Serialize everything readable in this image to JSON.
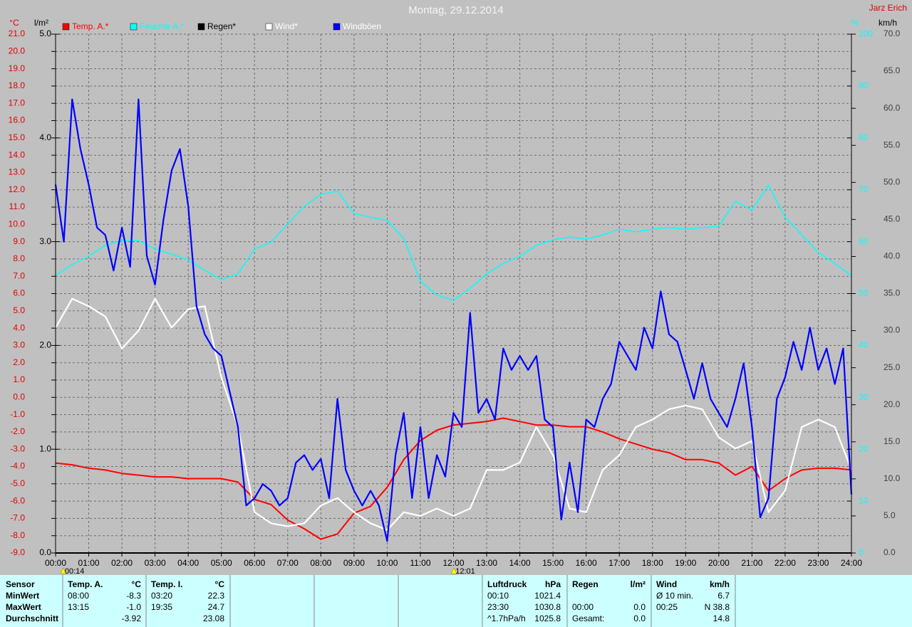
{
  "chart_data": {
    "type": "line",
    "title": "Montag, 29.12.2014",
    "author": "Jarz Erich",
    "y_label": "°C",
    "y2_label": "l/m²",
    "y3_label": "%",
    "y4_label": "km/h",
    "xlim": [
      0,
      24
    ],
    "xticks": [
      {
        "value": 0,
        "label": "00:00"
      },
      {
        "value": 1,
        "label": "01:00"
      },
      {
        "value": 2,
        "label": "02:00"
      },
      {
        "value": 3,
        "label": "03:00"
      },
      {
        "value": 4,
        "label": "04:00"
      },
      {
        "value": 5,
        "label": "05:00"
      },
      {
        "value": 6,
        "label": "06:00"
      },
      {
        "value": 7,
        "label": "07:00"
      },
      {
        "value": 8,
        "label": "08:00"
      },
      {
        "value": 9,
        "label": "09:00"
      },
      {
        "value": 10,
        "label": "10:00"
      },
      {
        "value": 11,
        "label": "11:00"
      },
      {
        "value": 12,
        "label": "12:00"
      },
      {
        "value": 13,
        "label": "13:00"
      },
      {
        "value": 14,
        "label": "14:00"
      },
      {
        "value": 15,
        "label": "15:00"
      },
      {
        "value": 16,
        "label": "16:00"
      },
      {
        "value": 17,
        "label": "17:00"
      },
      {
        "value": 18,
        "label": "18:00"
      },
      {
        "value": 19,
        "label": "19:00"
      },
      {
        "value": 20,
        "label": "20:00"
      },
      {
        "value": 21,
        "label": "21:00"
      },
      {
        "value": 22,
        "label": "22:00"
      },
      {
        "value": 23,
        "label": "23:00"
      },
      {
        "value": 24,
        "label": "24:00"
      }
    ],
    "ylim": [
      -9,
      21
    ],
    "yticks": [
      {
        "value": -9,
        "label": "-9.0"
      },
      {
        "value": -8,
        "label": "-8.0"
      },
      {
        "value": -7,
        "label": "-7.0"
      },
      {
        "value": -6,
        "label": "-6.0"
      },
      {
        "value": -5,
        "label": "-5.0"
      },
      {
        "value": -4,
        "label": "-4.0"
      },
      {
        "value": -3,
        "label": "-3.0"
      },
      {
        "value": -2,
        "label": "-2.0"
      },
      {
        "value": -1,
        "label": "-1.0"
      },
      {
        "value": 0,
        "label": "0.0"
      },
      {
        "value": 1,
        "label": "1.0"
      },
      {
        "value": 2,
        "label": "2.0"
      },
      {
        "value": 3,
        "label": "3.0"
      },
      {
        "value": 4,
        "label": "4.0"
      },
      {
        "value": 5,
        "label": "5.0"
      },
      {
        "value": 6,
        "label": "6.0"
      },
      {
        "value": 7,
        "label": "7.0"
      },
      {
        "value": 8,
        "label": "8.0"
      },
      {
        "value": 9,
        "label": "9.0"
      },
      {
        "value": 10,
        "label": "10.0"
      },
      {
        "value": 11,
        "label": "11.0"
      },
      {
        "value": 12,
        "label": "12.0"
      },
      {
        "value": 13,
        "label": "13.0"
      },
      {
        "value": 14,
        "label": "14.0"
      },
      {
        "value": 15,
        "label": "15.0"
      },
      {
        "value": 16,
        "label": "16.0"
      },
      {
        "value": 17,
        "label": "17.0"
      },
      {
        "value": 18,
        "label": "18.0"
      },
      {
        "value": 19,
        "label": "19.0"
      },
      {
        "value": 20,
        "label": "20.0"
      },
      {
        "value": 21,
        "label": "21.0"
      }
    ],
    "y2lim": [
      0,
      5
    ],
    "y2ticks": [
      {
        "value": 0,
        "label": "0.0"
      },
      {
        "value": 1,
        "label": "1.0"
      },
      {
        "value": 2,
        "label": "2.0"
      },
      {
        "value": 3,
        "label": "3.0"
      },
      {
        "value": 4,
        "label": "4.0"
      },
      {
        "value": 5,
        "label": "5.0"
      }
    ],
    "y3lim": [
      0,
      100
    ],
    "y3ticks": [
      0,
      10,
      20,
      30,
      40,
      50,
      60,
      70,
      80,
      90,
      100
    ],
    "y4lim": [
      0,
      70
    ],
    "y4ticks": [
      {
        "value": 0,
        "label": "0.0"
      },
      {
        "value": 5,
        "label": "5.0"
      },
      {
        "value": 10,
        "label": "10.0"
      },
      {
        "value": 15,
        "label": "15.0"
      },
      {
        "value": 20,
        "label": "20.0"
      },
      {
        "value": 25,
        "label": "25.0"
      },
      {
        "value": 30,
        "label": "30.0"
      },
      {
        "value": 35,
        "label": "35.0"
      },
      {
        "value": 40,
        "label": "40.0"
      },
      {
        "value": 45,
        "label": "45.0"
      },
      {
        "value": 50,
        "label": "50.0"
      },
      {
        "value": 55,
        "label": "55.0"
      },
      {
        "value": 60,
        "label": "60.0"
      },
      {
        "value": 65,
        "label": "65.0"
      },
      {
        "value": 70,
        "label": "70.0"
      }
    ],
    "grid": true,
    "markers": [
      "00:14",
      "12:01"
    ],
    "series": [
      {
        "name": "Temp. A.*",
        "color": "#ff0000",
        "label_color": "#ff0000",
        "axis": "y",
        "x": [
          0,
          0.5,
          1,
          1.5,
          2,
          2.5,
          3,
          3.5,
          4,
          4.5,
          5,
          5.5,
          6,
          6.5,
          7,
          7.5,
          8,
          8.5,
          9,
          9.5,
          10,
          10.5,
          11,
          11.5,
          12,
          12.5,
          13,
          13.5,
          14,
          14.5,
          15,
          15.5,
          16,
          16.5,
          17,
          17.5,
          18,
          18.5,
          19,
          19.5,
          20,
          20.5,
          21,
          21.5,
          22,
          22.5,
          23,
          23.5,
          24
        ],
        "values": [
          -3.8,
          -3.9,
          -4.1,
          -4.2,
          -4.4,
          -4.5,
          -4.6,
          -4.6,
          -4.7,
          -4.7,
          -4.7,
          -4.9,
          -5.9,
          -6.2,
          -7.1,
          -7.6,
          -8.2,
          -7.9,
          -6.7,
          -6.3,
          -5.2,
          -3.6,
          -2.5,
          -1.9,
          -1.6,
          -1.5,
          -1.4,
          -1.2,
          -1.4,
          -1.6,
          -1.6,
          -1.7,
          -1.7,
          -2.0,
          -2.4,
          -2.7,
          -3.0,
          -3.2,
          -3.6,
          -3.6,
          -3.8,
          -4.5,
          -4.0,
          -5.4,
          -4.7,
          -4.2,
          -4.1,
          -4.1,
          -4.2
        ]
      },
      {
        "name": "Feuchte A.*",
        "color": "#00ffff",
        "label_color": "#00ffff",
        "axis": "y3",
        "x": [
          0,
          0.5,
          1,
          1.5,
          2,
          2.5,
          3,
          3.5,
          4,
          4.5,
          5,
          5.5,
          6,
          6.5,
          7,
          7.5,
          8,
          8.5,
          9,
          9.5,
          10,
          10.5,
          11,
          11.5,
          12,
          12.5,
          13,
          13.5,
          14,
          14.5,
          15,
          15.5,
          16,
          16.5,
          17,
          17.5,
          18,
          18.5,
          19,
          19.5,
          20,
          20.5,
          21,
          21.5,
          22,
          22.5,
          23,
          23.5,
          24
        ],
        "values": [
          53.5,
          55.6,
          57.2,
          59.3,
          60.2,
          60.2,
          58.6,
          57.6,
          56.5,
          54.5,
          52.7,
          53.8,
          58.6,
          59.9,
          63.4,
          66.8,
          69.1,
          69.8,
          65.4,
          64.7,
          64.1,
          60.6,
          52.4,
          49.7,
          48.7,
          51.0,
          53.8,
          55.8,
          57.2,
          59.3,
          60.4,
          60.9,
          60.5,
          61.3,
          62.4,
          61.9,
          62.4,
          62.7,
          62.4,
          62.7,
          63.0,
          67.8,
          66.1,
          70.9,
          64.7,
          61.3,
          57.9,
          55.8,
          53.5
        ]
      },
      {
        "name": "Regen*",
        "color": "#000000",
        "label_color": "#000000",
        "axis": "y2",
        "x": [
          0,
          24
        ],
        "values": [
          0,
          0
        ]
      },
      {
        "name": "Wind*",
        "color": "#ffffff",
        "label_color": "#ffffff",
        "axis": "y4",
        "x": [
          0,
          0.5,
          1,
          1.5,
          2,
          2.5,
          3,
          3.5,
          4,
          4.5,
          5,
          5.5,
          6,
          6.5,
          7,
          7.5,
          8,
          8.5,
          9,
          9.5,
          10,
          10.5,
          11,
          11.5,
          12,
          12.5,
          13,
          13.5,
          14,
          14.5,
          15,
          15.5,
          16,
          16.5,
          17,
          17.5,
          18,
          18.5,
          19,
          19.5,
          20,
          20.5,
          21,
          21.5,
          22,
          22.5,
          23,
          23.5,
          24
        ],
        "values": [
          30.4,
          34.3,
          33.3,
          31.9,
          27.6,
          30.0,
          34.3,
          30.4,
          32.9,
          33.3,
          23.7,
          17.0,
          5.5,
          4.0,
          3.6,
          4.0,
          6.4,
          7.4,
          5.5,
          4.0,
          3.1,
          5.5,
          5.0,
          6.0,
          5.0,
          6.0,
          11.2,
          11.2,
          12.2,
          17.0,
          13.2,
          6.0,
          5.5,
          11.2,
          13.2,
          17.0,
          18.0,
          19.4,
          19.9,
          19.4,
          15.6,
          14.1,
          15.1,
          5.5,
          8.4,
          17.0,
          18.0,
          17.0,
          11.2
        ]
      },
      {
        "name": "Windböen",
        "color": "#0000ff",
        "label_color": "#ffffff",
        "axis": "y4",
        "x": [
          0,
          0.25,
          0.5,
          0.75,
          1,
          1.25,
          1.5,
          1.75,
          2,
          2.25,
          2.5,
          2.75,
          3,
          3.25,
          3.5,
          3.75,
          4,
          4.25,
          4.5,
          4.75,
          5,
          5.25,
          5.5,
          5.75,
          6,
          6.25,
          6.5,
          6.75,
          7,
          7.25,
          7.5,
          7.75,
          8,
          8.25,
          8.5,
          8.75,
          9,
          9.25,
          9.5,
          9.75,
          10,
          10.25,
          10.5,
          10.75,
          11,
          11.25,
          11.5,
          11.75,
          12,
          12.25,
          12.5,
          12.75,
          13,
          13.25,
          13.5,
          13.75,
          14,
          14.25,
          14.5,
          14.75,
          15,
          15.25,
          15.5,
          15.75,
          16,
          16.25,
          16.5,
          16.75,
          17,
          17.25,
          17.5,
          17.75,
          18,
          18.25,
          18.5,
          18.75,
          19,
          19.25,
          19.5,
          19.75,
          20,
          20.25,
          20.5,
          20.75,
          21,
          21.25,
          21.5,
          21.75,
          22,
          22.25,
          22.5,
          22.75,
          23,
          23.25,
          23.5,
          23.75,
          24
        ],
        "values": [
          49.7,
          42.0,
          61.2,
          54.5,
          49.7,
          43.9,
          42.9,
          38.1,
          43.9,
          38.6,
          61.2,
          40.1,
          36.2,
          44.9,
          51.6,
          54.5,
          46.8,
          33.3,
          29.5,
          27.6,
          26.6,
          21.8,
          17.0,
          6.4,
          7.4,
          9.3,
          8.4,
          6.4,
          7.4,
          12.2,
          13.2,
          11.2,
          12.7,
          7.4,
          20.8,
          11.2,
          8.4,
          6.4,
          8.4,
          6.4,
          1.6,
          13.2,
          18.9,
          7.4,
          17.0,
          7.4,
          13.2,
          10.3,
          18.9,
          17.0,
          32.4,
          18.9,
          20.8,
          18.0,
          27.6,
          24.7,
          26.6,
          24.7,
          26.6,
          18.0,
          17.0,
          4.5,
          12.2,
          5.5,
          18.0,
          17.0,
          20.8,
          22.8,
          28.5,
          26.6,
          24.7,
          30.4,
          27.6,
          35.3,
          29.5,
          28.5,
          24.7,
          20.8,
          25.6,
          20.8,
          18.9,
          17.0,
          20.8,
          25.6,
          17.0,
          4.8,
          7.4,
          20.8,
          23.7,
          28.5,
          24.7,
          30.4,
          24.7,
          27.6,
          22.8,
          27.6,
          7.9
        ]
      }
    ]
  },
  "table": {
    "corner": "Sensor",
    "row_labels": [
      "MinWert",
      "MaxWert",
      "Durchschnitt"
    ],
    "groups": [
      {
        "name": "Temp. A.",
        "unit": "°C",
        "rows": [
          [
            "08:00",
            "-8.3"
          ],
          [
            "13:15",
            "-1.0"
          ],
          [
            null,
            "-3.92"
          ]
        ]
      },
      {
        "name": "Temp. I.",
        "unit": "°C",
        "rows": [
          [
            "03:20",
            "22.3"
          ],
          [
            "19:35",
            "24.7"
          ],
          [
            null,
            "23.08"
          ]
        ]
      },
      {
        "name": "Luftdruck",
        "unit": "hPa",
        "rows": [
          [
            "00:10",
            "1021.4"
          ],
          [
            "23:30",
            "1030.8"
          ],
          [
            "^1.7hPa/h",
            "1025.8"
          ]
        ]
      },
      {
        "name": "Regen",
        "unit": "l/m²",
        "rows": [
          [
            null,
            null
          ],
          [
            "00:00",
            "0.0"
          ],
          [
            "Gesamt:",
            "0.0"
          ]
        ]
      },
      {
        "name": "Wind",
        "unit": "km/h",
        "rows": [
          [
            "Ø 10 min.",
            "6.7"
          ],
          [
            "00:25",
            "N 38.8"
          ],
          [
            null,
            "14.8"
          ]
        ]
      }
    ]
  }
}
